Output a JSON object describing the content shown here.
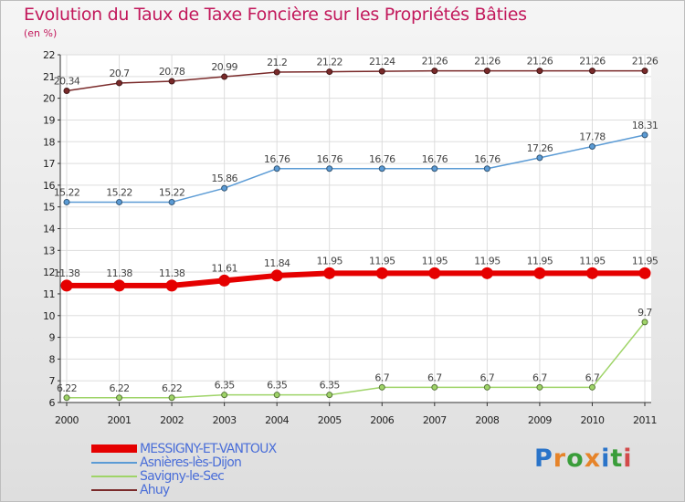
{
  "title": "Evolution du Taux de Taxe Foncière sur les Propriétés Bâties",
  "unit_label": "(en %)",
  "logo": {
    "text": "Proxiti",
    "colors": [
      "#2a74c9",
      "#e6842a",
      "#3a9d3a",
      "#e6842a",
      "#2a74c9",
      "#3a9d3a",
      "#d24a4a"
    ]
  },
  "chart_data": {
    "type": "line",
    "title": "Evolution du Taux de Taxe Foncière sur les Propriétés Bâties",
    "ylabel": "(en %)",
    "xlabel": "",
    "x": [
      "2000",
      "2001",
      "2002",
      "2003",
      "2004",
      "2005",
      "2006",
      "2007",
      "2008",
      "2009",
      "2010",
      "2011"
    ],
    "ylim": [
      6,
      22
    ],
    "yticks": [
      6,
      7,
      8,
      9,
      10,
      11,
      12,
      13,
      14,
      15,
      16,
      17,
      18,
      19,
      20,
      21,
      22
    ],
    "grid": true,
    "legend_position": "bottom-left",
    "series": [
      {
        "name": "Ahuy",
        "color": "#7a2a2a",
        "width": 1.5,
        "values": [
          20.34,
          20.7,
          20.78,
          20.99,
          21.2,
          21.22,
          21.24,
          21.26,
          21.26,
          21.26,
          21.26,
          21.26
        ],
        "labels": [
          "20.34",
          "20.7",
          "20.78",
          "20.99",
          "21.2",
          "21.22",
          "21.24",
          "21.26",
          "21.26",
          "21.26",
          "21.26",
          "21.26"
        ]
      },
      {
        "name": "Asnières-lès-Dijon",
        "color": "#5b9bd5",
        "width": 1.5,
        "values": [
          15.22,
          15.22,
          15.22,
          15.86,
          16.76,
          16.76,
          16.76,
          16.76,
          16.76,
          17.26,
          17.78,
          18.31
        ],
        "labels": [
          "15.22",
          "15.22",
          "15.22",
          "15.86",
          "16.76",
          "16.76",
          "16.76",
          "16.76",
          "16.76",
          "17.26",
          "17.78",
          "18.31"
        ]
      },
      {
        "name": "MESSIGNY-ET-VANTOUX",
        "color": "#e50000",
        "width": 6,
        "values": [
          11.38,
          11.38,
          11.38,
          11.61,
          11.84,
          11.95,
          11.95,
          11.95,
          11.95,
          11.95,
          11.95,
          11.95
        ],
        "labels": [
          "11.38",
          "11.38",
          "11.38",
          "11.61",
          "11.84",
          "11.95",
          "11.95",
          "11.95",
          "11.95",
          "11.95",
          "11.95",
          "11.95"
        ]
      },
      {
        "name": "Savigny-le-Sec",
        "color": "#9fd468",
        "width": 1.5,
        "values": [
          6.22,
          6.22,
          6.22,
          6.35,
          6.35,
          6.35,
          6.7,
          6.7,
          6.7,
          6.7,
          6.7,
          9.7
        ],
        "labels": [
          "6.22",
          "6.22",
          "6.22",
          "6.35",
          "6.35",
          "6.35",
          "6.7",
          "6.7",
          "6.7",
          "6.7",
          "6.7",
          "9.7"
        ]
      }
    ],
    "legend_order": [
      "MESSIGNY-ET-VANTOUX",
      "Asnières-lès-Dijon",
      "Savigny-le-Sec",
      "Ahuy"
    ]
  }
}
